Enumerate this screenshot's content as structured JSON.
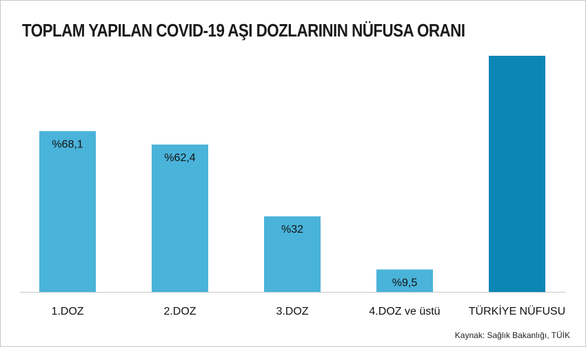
{
  "chart_data": {
    "type": "bar",
    "title": "TOPLAM YAPILAN COVID-19 AŞI DOZLARININ NÜFUSA ORANI",
    "categories": [
      "1.DOZ",
      "2.DOZ",
      "3.DOZ",
      "4.DOZ ve üstü",
      "TÜRKİYE NÜFUSU"
    ],
    "values": [
      68.1,
      62.4,
      32,
      9.5,
      100
    ],
    "data_labels": [
      "%68,1",
      "%62,4",
      "%32",
      "%9,5",
      ""
    ],
    "colors": [
      "#4ab3d9",
      "#4ab3d9",
      "#4ab3d9",
      "#4ab3d9",
      "#0c86b5"
    ],
    "baseline_color": "#c8c8c8",
    "ylim": [
      0,
      100
    ],
    "grid": false,
    "legend": "none",
    "xlabel": "",
    "ylabel": ""
  },
  "source": "Kaynak: Sağlık Bakanlığı, TÜİK"
}
